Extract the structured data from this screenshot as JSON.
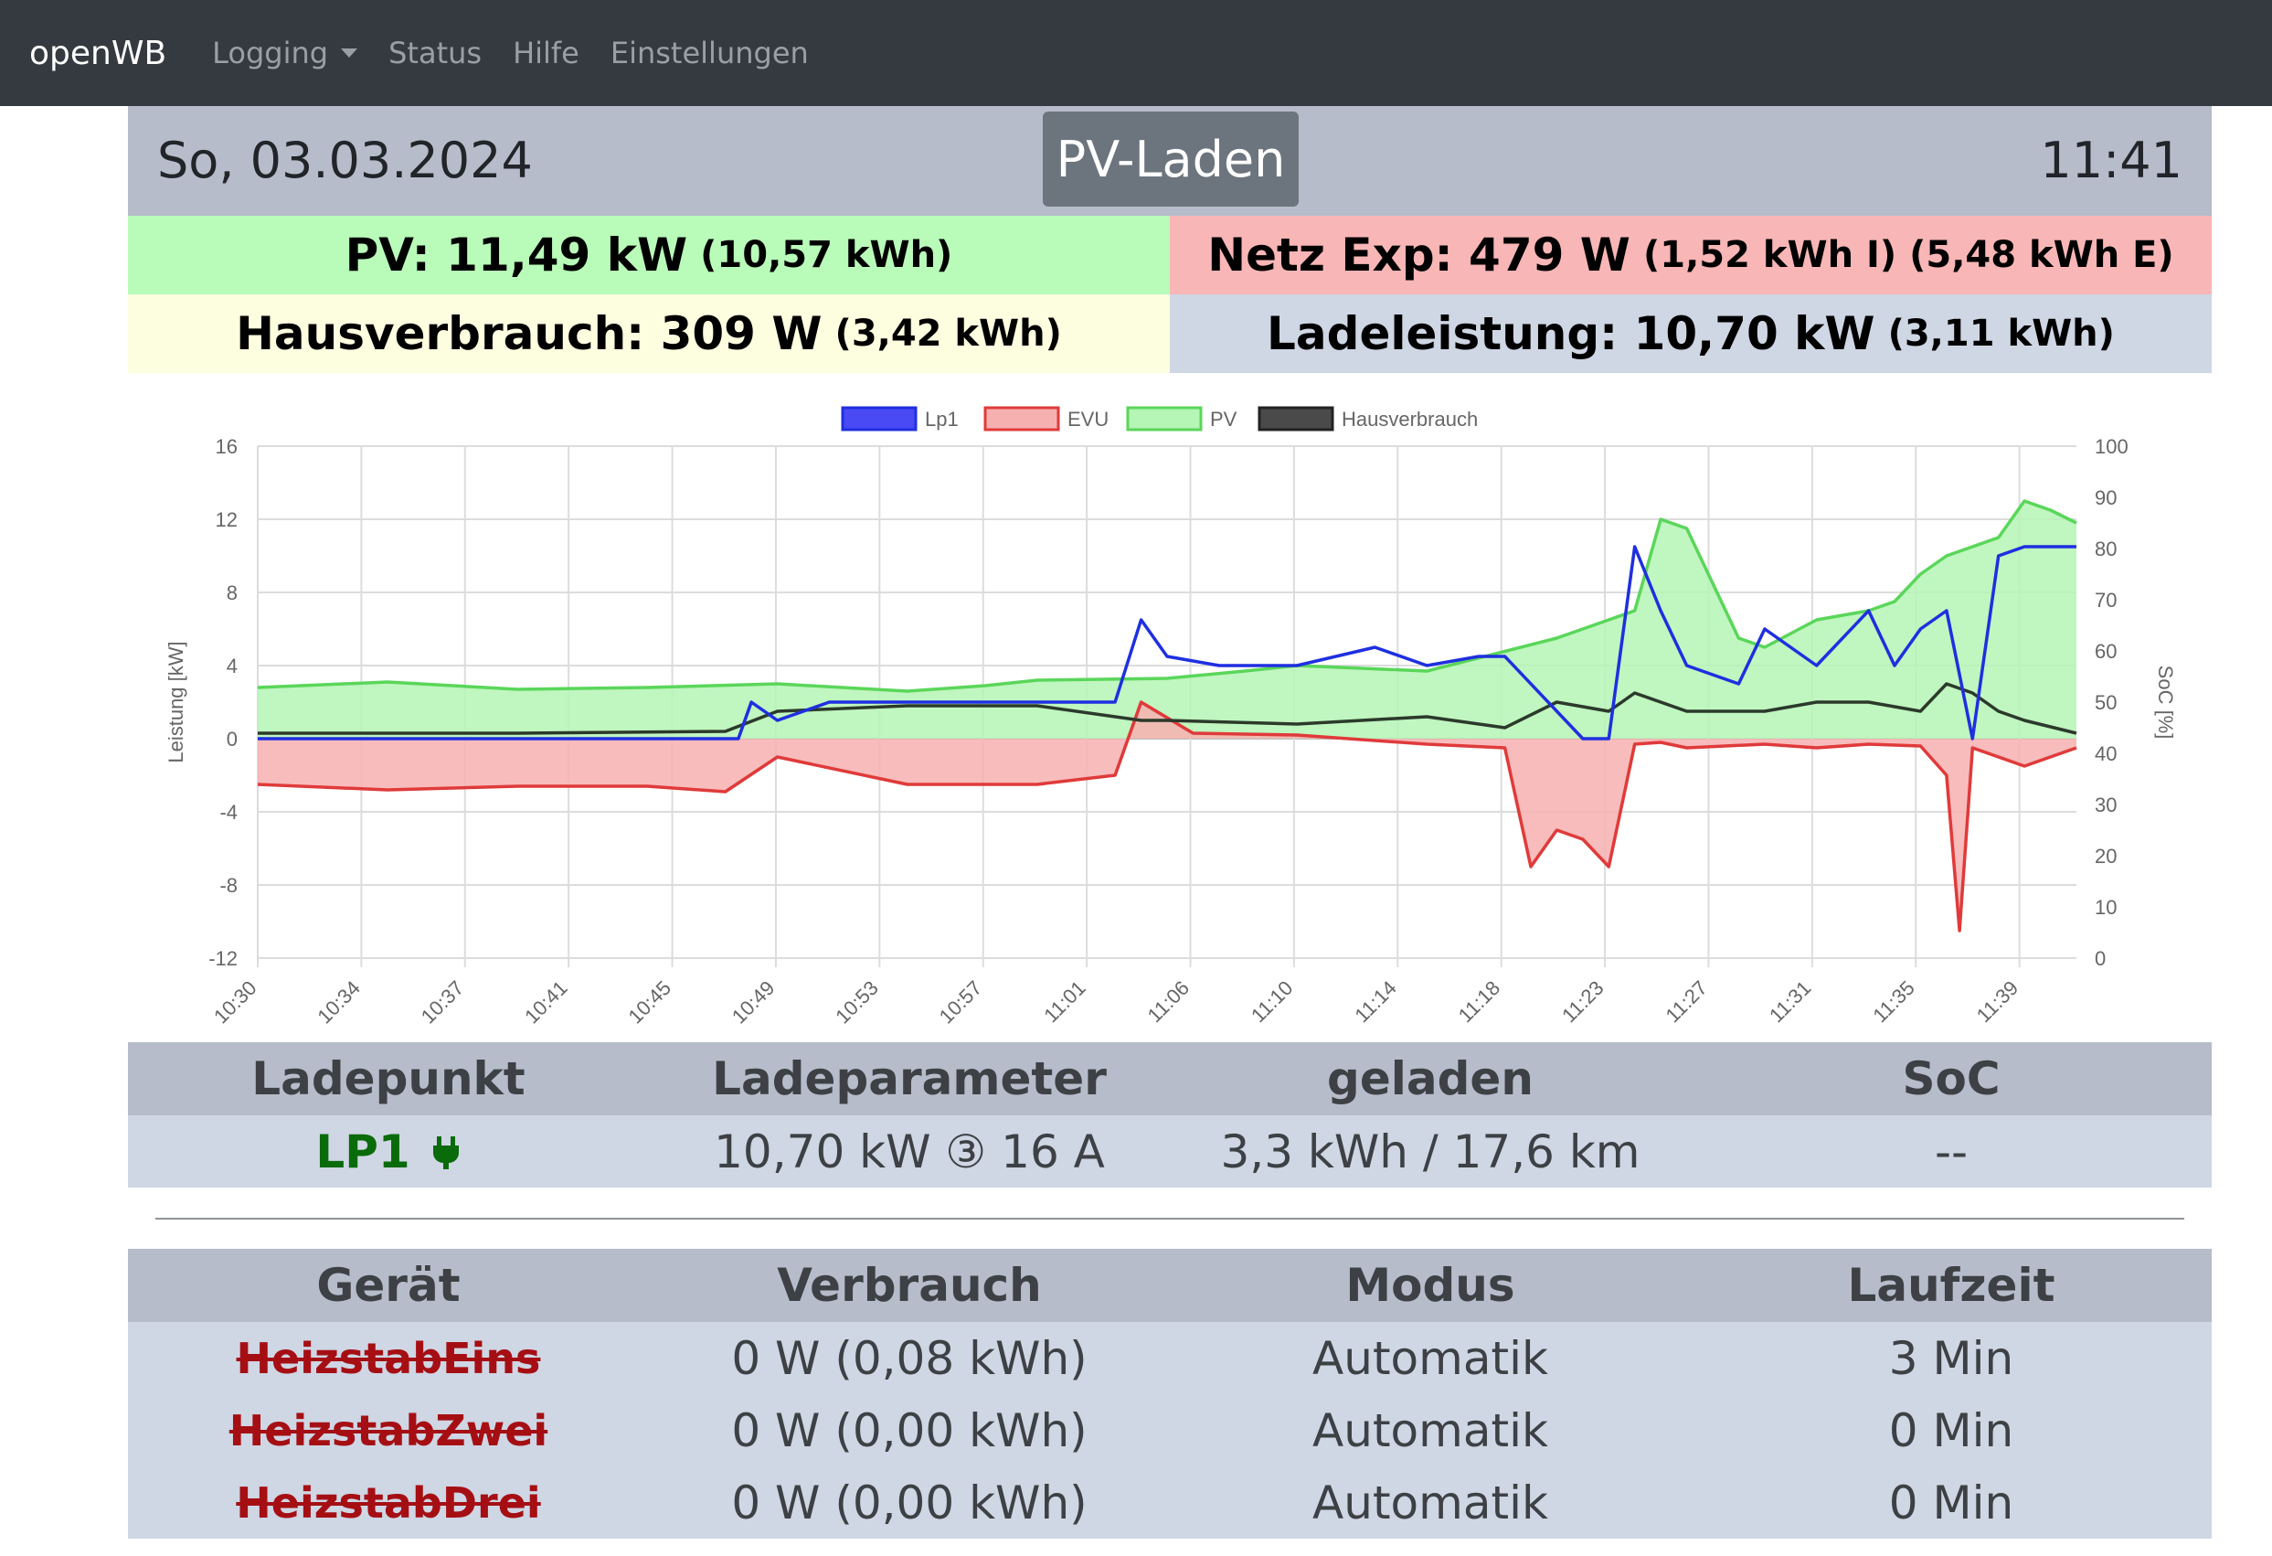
{
  "nav": {
    "brand": "openWB",
    "items": [
      {
        "label": "Logging",
        "dropdown": true
      },
      {
        "label": "Status"
      },
      {
        "label": "Hilfe"
      },
      {
        "label": "Einstellungen"
      }
    ]
  },
  "header": {
    "date": "So, 03.03.2024",
    "mode": "PV-Laden",
    "time": "11:41"
  },
  "tiles": {
    "pv": {
      "main": "PV: 11,49 kW",
      "sub": "(10,57 kWh)"
    },
    "netz": {
      "main": "Netz Exp: 479 W",
      "sub": "(1,52 kWh I) (5,48 kWh E)"
    },
    "haus": {
      "main": "Hausverbrauch: 309 W",
      "sub": "(3,42 kWh)"
    },
    "lade": {
      "main": "Ladeleistung: 10,70 kW",
      "sub": "(3,11 kWh)"
    }
  },
  "colors": {
    "lp1": "#1f2fe0",
    "evu": "#e03a3a",
    "evu_fill": "#f7b0b0",
    "pv": "#5ad65a",
    "pv_fill": "#b5f5b5",
    "haus": "#2b3a2b"
  },
  "chart_data": {
    "type": "line",
    "ylabel": "Leistung [kW]",
    "y2label": "SoC [%]",
    "ylim": [
      -12,
      16
    ],
    "y2lim": [
      0,
      100
    ],
    "yticks": [
      16,
      12,
      8,
      4,
      0,
      -4,
      -8,
      -12
    ],
    "y2ticks": [
      100,
      90,
      80,
      70,
      60,
      50,
      40,
      30,
      20,
      10,
      0
    ],
    "xticks": [
      "10:30",
      "10:34",
      "10:37",
      "10:41",
      "10:45",
      "10:49",
      "10:53",
      "10:57",
      "11:01",
      "11:06",
      "11:10",
      "11:14",
      "11:18",
      "11:23",
      "11:27",
      "11:31",
      "11:35",
      "11:39"
    ],
    "x_range_min": [
      0,
      70
    ],
    "legend": [
      "Lp1",
      "EVU",
      "PV",
      "Hausverbrauch"
    ],
    "grid": true,
    "series": [
      {
        "name": "PV",
        "x": [
          0,
          5,
          10,
          15,
          20,
          25,
          28,
          30,
          35,
          38,
          40,
          45,
          50,
          52,
          53,
          54,
          55,
          57,
          58,
          60,
          62,
          63,
          64,
          65,
          66,
          67,
          68,
          69,
          70
        ],
        "values": [
          2.8,
          3.1,
          2.7,
          2.8,
          3.0,
          2.6,
          2.9,
          3.2,
          3.3,
          3.7,
          4.0,
          3.7,
          5.5,
          6.5,
          7.0,
          12.0,
          11.5,
          5.5,
          5.0,
          6.5,
          7.0,
          7.5,
          9.0,
          10.0,
          10.5,
          11.0,
          13.0,
          12.5,
          11.8
        ]
      },
      {
        "name": "Lp1",
        "x": [
          0,
          18.5,
          19,
          20,
          22,
          24,
          26,
          28,
          30,
          33,
          34,
          35,
          37,
          38,
          40,
          43,
          45,
          47,
          48,
          51,
          52,
          53,
          54,
          55,
          57,
          58,
          60,
          62,
          63,
          64,
          65,
          66,
          67,
          68,
          69,
          70
        ],
        "values": [
          0,
          0,
          2,
          1,
          2,
          2,
          2,
          2,
          2,
          2,
          6.5,
          4.5,
          4,
          4,
          4,
          5,
          4,
          4.5,
          4.5,
          0,
          0,
          10.5,
          7,
          4,
          3,
          6,
          4,
          7,
          4,
          6,
          7,
          0,
          10,
          10.5,
          10.5,
          10.5
        ]
      },
      {
        "name": "EVU",
        "x": [
          0,
          5,
          10,
          15,
          18,
          20,
          25,
          28,
          30,
          33,
          34,
          36,
          40,
          45,
          48,
          49,
          50,
          51,
          52,
          53,
          54,
          55,
          58,
          60,
          62,
          64,
          65,
          65.5,
          66,
          68,
          70
        ],
        "values": [
          -2.5,
          -2.8,
          -2.6,
          -2.6,
          -2.9,
          -1.0,
          -2.5,
          -2.5,
          -2.5,
          -2.0,
          2.0,
          0.3,
          0.2,
          -0.3,
          -0.5,
          -7.0,
          -5.0,
          -5.5,
          -7.0,
          -0.3,
          -0.2,
          -0.5,
          -0.3,
          -0.5,
          -0.3,
          -0.4,
          -2.0,
          -10.5,
          -0.5,
          -1.5,
          -0.5
        ]
      },
      {
        "name": "Hausverbrauch",
        "x": [
          0,
          10,
          18,
          20,
          25,
          30,
          34,
          35,
          40,
          45,
          48,
          50,
          52,
          53,
          55,
          58,
          60,
          62,
          64,
          65,
          66,
          67,
          68,
          70
        ],
        "values": [
          0.3,
          0.3,
          0.4,
          1.5,
          1.8,
          1.8,
          1.0,
          1.0,
          0.8,
          1.2,
          0.6,
          2.0,
          1.5,
          2.5,
          1.5,
          1.5,
          2.0,
          2.0,
          1.5,
          3.0,
          2.5,
          1.5,
          1.0,
          0.3
        ]
      }
    ]
  },
  "ladepunkt_table": {
    "headers": [
      "Ladepunkt",
      "Ladeparameter",
      "geladen",
      "SoC"
    ],
    "rows": [
      {
        "name": "LP1",
        "plug_icon": "plug-icon",
        "param": "10,70 kW ③ 16 A",
        "geladen": "3,3 kWh / 17,6 km",
        "soc": "--"
      }
    ]
  },
  "geraete_table": {
    "headers": [
      "Gerät",
      "Verbrauch",
      "Modus",
      "Laufzeit"
    ],
    "rows": [
      {
        "name": "HeizstabEins",
        "verbrauch": "0 W (0,08 kWh)",
        "modus": "Automatik",
        "laufzeit": "3 Min"
      },
      {
        "name": "HeizstabZwei",
        "verbrauch": "0 W (0,00 kWh)",
        "modus": "Automatik",
        "laufzeit": "0 Min"
      },
      {
        "name": "HeizstabDrei",
        "verbrauch": "0 W (0,00 kWh)",
        "modus": "Automatik",
        "laufzeit": "0 Min"
      }
    ]
  }
}
